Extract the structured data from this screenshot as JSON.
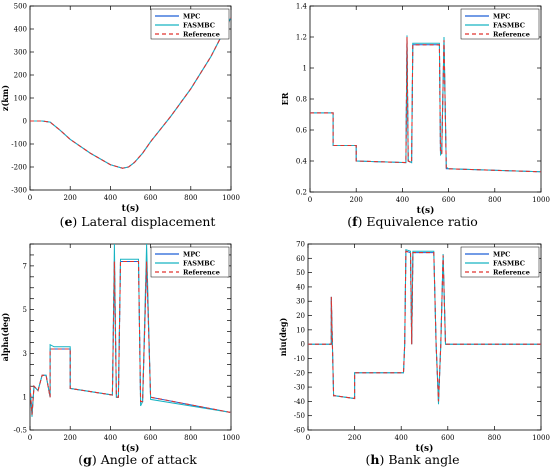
{
  "captions": [
    {
      "letter": "e",
      "text": "Lateral displacement"
    },
    {
      "letter": "f",
      "text": "Equivalence ratio"
    },
    {
      "letter": "g",
      "text": "Angle of attack"
    },
    {
      "letter": "h",
      "text": "Bank angle"
    }
  ],
  "colors": {
    "mpc": "#1f5fd6",
    "fasmbc": "#17b3c2",
    "reference": "#e0332f"
  },
  "chart_data": [
    {
      "type": "line",
      "xlabel": "t(s)",
      "ylabel": "z(km)",
      "xlim": [
        0,
        1000
      ],
      "ylim": [
        -300,
        500
      ],
      "xticks": [
        "0",
        "200",
        "400",
        "600",
        "800",
        "1000"
      ],
      "yticks": [
        "-300",
        "-200",
        "-100",
        "0",
        "100",
        "200",
        "300",
        "400",
        "500"
      ],
      "legend_position": "top-right",
      "series": [
        {
          "name": "MPC",
          "style": "solid",
          "x": [
            0,
            60,
            100,
            150,
            200,
            300,
            400,
            460,
            490,
            520,
            560,
            600,
            700,
            800,
            900,
            1000
          ],
          "values": [
            0,
            0,
            -5,
            -40,
            -80,
            -140,
            -190,
            -205,
            -200,
            -180,
            -140,
            -90,
            20,
            140,
            280,
            450
          ]
        },
        {
          "name": "FASMBC",
          "style": "solid",
          "x": [
            0,
            60,
            100,
            150,
            200,
            300,
            400,
            460,
            490,
            520,
            560,
            600,
            700,
            800,
            900,
            1000
          ],
          "values": [
            0,
            0,
            -5,
            -40,
            -80,
            -140,
            -190,
            -205,
            -200,
            -180,
            -140,
            -90,
            20,
            140,
            280,
            450
          ]
        },
        {
          "name": "Reference",
          "style": "dashed",
          "x": [
            0,
            60,
            100,
            150,
            200,
            300,
            400,
            460,
            490,
            520,
            560,
            600,
            700,
            800,
            900,
            1000
          ],
          "values": [
            0,
            0,
            -5,
            -40,
            -80,
            -140,
            -190,
            -205,
            -200,
            -180,
            -140,
            -90,
            20,
            140,
            280,
            450
          ]
        }
      ]
    },
    {
      "type": "line",
      "xlabel": "t(s)",
      "ylabel": "ER",
      "xlim": [
        0,
        1000
      ],
      "ylim": [
        0.2,
        1.4
      ],
      "xticks": [
        "0",
        "200",
        "400",
        "600",
        "800",
        "1000"
      ],
      "yticks": [
        "0.2",
        "0.4",
        "0.6",
        "0.8",
        "1",
        "1.2",
        "1.4"
      ],
      "legend_position": "top-right",
      "series": [
        {
          "name": "MPC",
          "style": "solid",
          "x": [
            0,
            100,
            100,
            200,
            200,
            415,
            420,
            425,
            440,
            445,
            455,
            560,
            565,
            570,
            580,
            590,
            600,
            1000
          ],
          "values": [
            0.71,
            0.71,
            0.5,
            0.5,
            0.4,
            0.39,
            1.2,
            0.4,
            0.39,
            1.15,
            1.15,
            1.15,
            0.45,
            0.45,
            1.18,
            0.35,
            0.35,
            0.33
          ]
        },
        {
          "name": "FASMBC",
          "style": "solid",
          "x": [
            0,
            100,
            100,
            200,
            200,
            415,
            420,
            425,
            440,
            445,
            455,
            560,
            565,
            570,
            580,
            590,
            600,
            1000
          ],
          "values": [
            0.71,
            0.71,
            0.5,
            0.5,
            0.4,
            0.39,
            1.21,
            0.4,
            0.39,
            1.16,
            1.16,
            1.16,
            0.44,
            0.45,
            1.2,
            0.36,
            0.35,
            0.33
          ]
        },
        {
          "name": "Reference",
          "style": "dashed",
          "x": [
            0,
            100,
            100,
            200,
            200,
            415,
            420,
            425,
            440,
            445,
            455,
            560,
            565,
            570,
            580,
            590,
            600,
            1000
          ],
          "values": [
            0.71,
            0.71,
            0.5,
            0.5,
            0.4,
            0.39,
            1.2,
            0.4,
            0.39,
            1.15,
            1.15,
            1.15,
            0.45,
            0.45,
            1.18,
            0.35,
            0.35,
            0.33
          ]
        }
      ]
    },
    {
      "type": "line",
      "xlabel": "t(s)",
      "ylabel": "alpha(deg)",
      "xlim": [
        0,
        1000
      ],
      "ylim": [
        -0.5,
        8
      ],
      "xticks": [
        "0",
        "200",
        "400",
        "600",
        "800",
        "1000"
      ],
      "yticks": [
        "-0.5",
        "1",
        "1.5",
        "2",
        "2.5",
        "3",
        "3.5",
        "4",
        "4.5",
        "5",
        "5.5",
        "6",
        "6.5",
        "7",
        "7.5",
        "8"
      ],
      "yticks_visible": [
        "-0.5",
        "1",
        "3",
        "5",
        "7"
      ],
      "legend_position": "top-right",
      "series": [
        {
          "name": "MPC",
          "style": "solid",
          "x": [
            0,
            10,
            20,
            40,
            60,
            80,
            100,
            100,
            120,
            140,
            200,
            200,
            410,
            420,
            430,
            440,
            450,
            540,
            550,
            560,
            580,
            600,
            1000
          ],
          "values": [
            1.5,
            0.2,
            1.5,
            1.3,
            2.0,
            2.0,
            1.0,
            3.2,
            3.2,
            3.2,
            3.2,
            1.4,
            1.1,
            7.2,
            1.0,
            1.0,
            7.2,
            7.2,
            0.8,
            0.8,
            7.2,
            1.0,
            0.3
          ]
        },
        {
          "name": "FASMBC",
          "style": "solid",
          "x": [
            0,
            10,
            20,
            40,
            60,
            80,
            100,
            100,
            120,
            140,
            200,
            200,
            410,
            420,
            430,
            440,
            450,
            540,
            550,
            560,
            580,
            600,
            1000
          ],
          "values": [
            1.5,
            0.1,
            1.5,
            1.3,
            2.0,
            2.0,
            1.0,
            3.4,
            3.3,
            3.3,
            3.3,
            1.4,
            1.1,
            8.0,
            1.0,
            1.0,
            7.3,
            7.3,
            0.6,
            0.8,
            8.0,
            0.9,
            0.3
          ]
        },
        {
          "name": "Reference",
          "style": "dashed",
          "x": [
            0,
            10,
            20,
            40,
            60,
            80,
            100,
            100,
            120,
            140,
            200,
            200,
            410,
            420,
            430,
            440,
            450,
            540,
            550,
            560,
            580,
            600,
            1000
          ],
          "values": [
            1.5,
            0.2,
            1.5,
            1.3,
            2.0,
            2.0,
            1.0,
            3.2,
            3.2,
            3.2,
            3.2,
            1.4,
            1.1,
            7.2,
            1.0,
            1.0,
            7.2,
            7.2,
            0.8,
            0.8,
            7.2,
            1.0,
            0.3
          ]
        }
      ]
    },
    {
      "type": "line",
      "xlabel": "t(s)",
      "ylabel": "niu(deg)",
      "xlim": [
        0,
        1000
      ],
      "ylim": [
        -60,
        70
      ],
      "xticks": [
        "0",
        "200",
        "400",
        "600",
        "800",
        "1000"
      ],
      "yticks": [
        "-60",
        "-50",
        "-40",
        "-30",
        "-20",
        "-10",
        "0",
        "10",
        "20",
        "30",
        "40",
        "50",
        "60",
        "70"
      ],
      "legend_position": "top-right",
      "series": [
        {
          "name": "MPC",
          "style": "solid",
          "x": [
            0,
            100,
            100,
            110,
            115,
            200,
            200,
            410,
            415,
            420,
            440,
            445,
            450,
            540,
            550,
            560,
            570,
            580,
            590,
            600,
            1000
          ],
          "values": [
            0,
            0,
            33,
            -36,
            -36,
            -38,
            -20,
            -20,
            0,
            65,
            64,
            0,
            64,
            64,
            0,
            -40,
            0,
            62,
            0,
            0,
            0
          ]
        },
        {
          "name": "FASMBC",
          "style": "solid",
          "x": [
            0,
            100,
            100,
            110,
            115,
            200,
            200,
            410,
            415,
            420,
            440,
            445,
            450,
            540,
            550,
            560,
            570,
            580,
            590,
            600,
            1000
          ],
          "values": [
            0,
            0,
            33,
            -36,
            -36,
            -38,
            -20,
            -20,
            0,
            66,
            65,
            0,
            65,
            65,
            0,
            -42,
            0,
            63,
            0,
            0,
            0
          ]
        },
        {
          "name": "Reference",
          "style": "dashed",
          "x": [
            0,
            100,
            100,
            110,
            115,
            200,
            200,
            410,
            415,
            420,
            440,
            445,
            450,
            540,
            550,
            560,
            570,
            580,
            590,
            600,
            1000
          ],
          "values": [
            0,
            0,
            33,
            -36,
            -36,
            -38,
            -20,
            -20,
            0,
            65,
            64,
            0,
            64,
            64,
            0,
            -40,
            0,
            62,
            0,
            0,
            0
          ]
        }
      ]
    }
  ]
}
